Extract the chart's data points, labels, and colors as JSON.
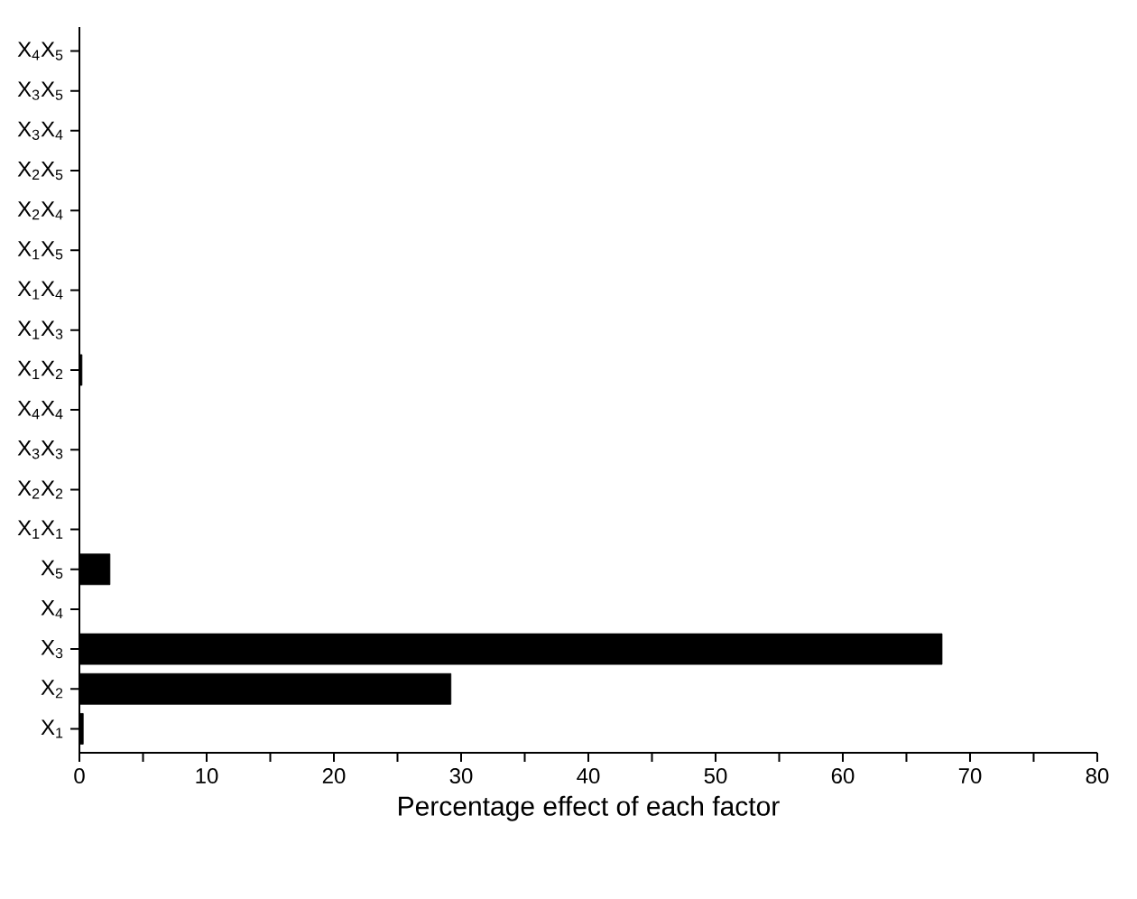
{
  "chart_data": {
    "type": "bar",
    "orientation": "horizontal",
    "xlabel": "Percentage effect of each factor",
    "categories": [
      "X$_{4}$X$_{5}$",
      "X$_{3}$X$_{5}$",
      "X$_{3}$X$_{4}$",
      "X$_{2}$X$_{5}$",
      "X$_{2}$X$_{4}$",
      "X$_{1}$X$_{5}$",
      "X$_{1}$X$_{4}$",
      "X$_{1}$X$_{3}$",
      "X$_{1}$X$_{2}$",
      "X$_{4}$X$_{4}$",
      "X$_{3}$X$_{3}$",
      "X$_{2}$X$_{2}$",
      "X$_{1}$X$_{1}$",
      "X$_{5}$",
      "X$_{4}$",
      "X$_{3}$",
      "X$_{2}$",
      "X$_{1}$"
    ],
    "values": [
      0,
      0,
      0,
      0,
      0,
      0,
      0,
      0,
      0.2,
      0,
      0,
      0,
      0,
      2.4,
      0,
      67.8,
      29.2,
      0.3
    ],
    "color": "#000000",
    "xlim": [
      0,
      80
    ],
    "xticks": [
      0,
      {
        "value": 5,
        "label": null
      },
      10,
      {
        "value": 15,
        "label": null
      },
      20,
      {
        "value": 25,
        "label": null
      },
      30,
      {
        "value": 35,
        "label": null
      },
      40,
      {
        "value": 45,
        "label": null
      },
      50,
      {
        "value": 55,
        "label": null
      },
      60,
      {
        "value": 65,
        "label": null
      },
      70,
      {
        "value": 75,
        "label": null
      },
      80
    ],
    "grid": false
  }
}
